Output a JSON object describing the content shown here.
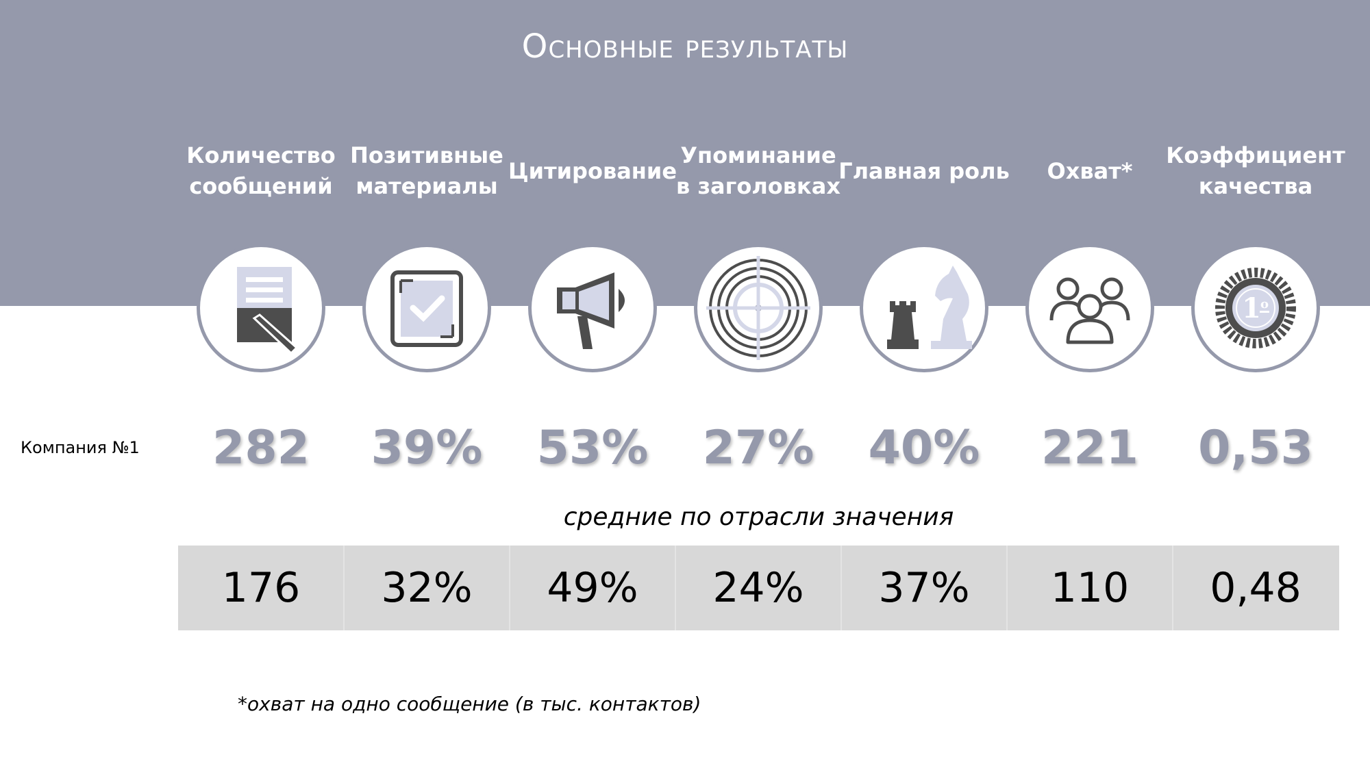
{
  "title": "Основные результаты",
  "company_label": "Компания №1",
  "average_caption": "средние по отрасли значения",
  "footnote": "*охват на одно сообщение (в тыс. контактов)",
  "colors": {
    "accent": "#9599ab",
    "accent_light": "#d4d7e8",
    "dark": "#4d4d4d",
    "avg_band": "#d8d8d8"
  },
  "metrics": [
    {
      "label": "Количество\nсообщений",
      "icon": "document-pencil-icon",
      "company_value": "282",
      "average_value": "176"
    },
    {
      "label": "Позитивные\nматериалы",
      "icon": "checkbox-icon",
      "company_value": "39%",
      "average_value": "32%"
    },
    {
      "label": "Цитирование",
      "icon": "megaphone-icon",
      "company_value": "53%",
      "average_value": "49%"
    },
    {
      "label": "Упоминание\nв заголовках",
      "icon": "target-icon",
      "company_value": "27%",
      "average_value": "24%"
    },
    {
      "label": "Главная роль",
      "icon": "chess-icon",
      "company_value": "40%",
      "average_value": "37%"
    },
    {
      "label": "Охват*",
      "icon": "people-icon",
      "company_value": "221",
      "average_value": "110"
    },
    {
      "label": "Коэффициент\nкачества",
      "icon": "seal-first-icon",
      "company_value": "0,53",
      "average_value": "0,48"
    }
  ]
}
